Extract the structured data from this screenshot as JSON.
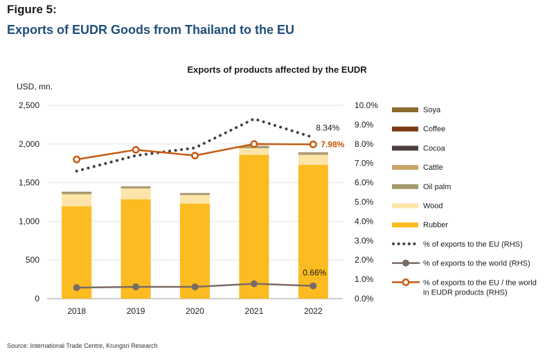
{
  "figure_label": "Figure 5:",
  "figure_title": "Exports of EUDR Goods from Thailand to the EU",
  "source": "Source: International Trade Centre, Krungsri Research",
  "chart_data": {
    "type": "bar",
    "title": "Exports of products affected by the EUDR",
    "ylabel": "USD, mn.",
    "ylim": [
      0,
      2500
    ],
    "y2lim": [
      0,
      10
    ],
    "y_ticks": [
      "0",
      "500",
      "1,000",
      "1,500",
      "2,000",
      "2,500"
    ],
    "y2_ticks": [
      "0.0%",
      "1.0%",
      "2.0%",
      "3.0%",
      "4.0%",
      "5.0%",
      "6.0%",
      "7.0%",
      "8.0%",
      "9.0%",
      "10.0%"
    ],
    "categories": [
      "2018",
      "2019",
      "2020",
      "2021",
      "2022"
    ],
    "stacked": true,
    "bar_series": [
      {
        "name": "Rubber",
        "color": "#fbbb21",
        "values": [
          1195,
          1285,
          1230,
          1860,
          1730
        ]
      },
      {
        "name": "Wood",
        "color": "#fde4a8",
        "values": [
          155,
          140,
          110,
          85,
          130
        ]
      },
      {
        "name": "Oil palm",
        "color": "#a49a6a",
        "values": [
          20,
          15,
          15,
          20,
          20
        ]
      },
      {
        "name": "Cattle",
        "color": "#c9a56a",
        "values": [
          5,
          5,
          3,
          5,
          5
        ]
      },
      {
        "name": "Cocoa",
        "color": "#4e4040",
        "values": [
          3,
          3,
          3,
          3,
          3
        ]
      },
      {
        "name": "Coffee",
        "color": "#7b3a12",
        "values": [
          2,
          2,
          2,
          2,
          2
        ]
      },
      {
        "name": "Soya",
        "color": "#8b6a2e",
        "values": [
          2,
          2,
          2,
          2,
          2
        ]
      }
    ],
    "line_series": [
      {
        "name": "% of exports to the EU (RHS)",
        "color": "#404040",
        "style": "dotted",
        "axis": "right",
        "values": [
          6.6,
          7.4,
          7.8,
          9.3,
          8.34
        ]
      },
      {
        "name": "% of exports to the world (RHS)",
        "color": "#7a6a66",
        "style": "solid-marker",
        "axis": "right",
        "values": [
          0.57,
          0.61,
          0.61,
          0.77,
          0.66
        ]
      },
      {
        "name": "% of exports to the EU / the world in EUDR products (RHS)",
        "color": "#c55a11",
        "style": "solid-hollow-marker",
        "axis": "right",
        "values": [
          7.2,
          7.7,
          7.4,
          8.0,
          7.98
        ]
      }
    ],
    "annotations": [
      {
        "text": "8.34%",
        "series": "% of exports to the EU (RHS)",
        "category": "2022"
      },
      {
        "text": "7.98%",
        "series": "% of exports to the EU / the world in EUDR products (RHS)",
        "category": "2022"
      },
      {
        "text": "0.66%",
        "series": "% of exports to the world (RHS)",
        "category": "2022"
      }
    ],
    "legend": [
      "Soya",
      "Coffee",
      "Cocoa",
      "Cattle",
      "Oil palm",
      "Wood",
      "Rubber",
      "% of exports to the EU (RHS)",
      "% of exports to the world (RHS)",
      "% of exports to the EU / the world\nin EUDR products (RHS)"
    ],
    "legend_position": "right",
    "grid": true
  }
}
